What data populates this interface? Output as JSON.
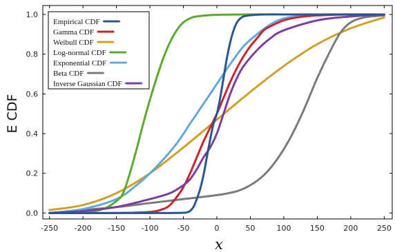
{
  "chart_data": {
    "type": "line",
    "title": "",
    "xlabel": "x",
    "ylabel": "E CDF",
    "xlim": [
      -260,
      262
    ],
    "ylim": [
      -0.03,
      1.045
    ],
    "xticks": [
      -250,
      -200,
      -150,
      -100,
      -50,
      0,
      50,
      100,
      150,
      200,
      250
    ],
    "yticks": [
      0.0,
      0.2,
      0.4,
      0.6,
      0.8,
      1.0
    ],
    "ytick_labels": [
      "0.0",
      "0.2",
      "0.4",
      "0.6",
      "0.8",
      "1.0"
    ],
    "grid": false,
    "legend_position": "top-left",
    "series": [
      {
        "name": "Empirical CDF",
        "color": "#2a5592",
        "points": [
          [
            -250,
            0
          ],
          [
            -200,
            0
          ],
          [
            -150,
            0
          ],
          [
            -100,
            0
          ],
          [
            -70,
            0
          ],
          [
            -50,
            0.001
          ],
          [
            -45,
            0.003
          ],
          [
            -40,
            0.01
          ],
          [
            -35,
            0.03
          ],
          [
            -30,
            0.07
          ],
          [
            -25,
            0.12
          ],
          [
            -20,
            0.19
          ],
          [
            -15,
            0.28
          ],
          [
            -10,
            0.37
          ],
          [
            -5,
            0.45
          ],
          [
            0,
            0.5
          ],
          [
            5,
            0.58
          ],
          [
            10,
            0.68
          ],
          [
            15,
            0.78
          ],
          [
            20,
            0.86
          ],
          [
            25,
            0.92
          ],
          [
            30,
            0.96
          ],
          [
            35,
            0.98
          ],
          [
            40,
            0.99
          ],
          [
            50,
            0.996
          ],
          [
            70,
            1.0
          ],
          [
            100,
            1.0
          ],
          [
            150,
            1.0
          ],
          [
            200,
            1.0
          ],
          [
            250,
            1.0
          ]
        ]
      },
      {
        "name": "Gamma CDF",
        "color": "#cc2229",
        "points": [
          [
            -250,
            0
          ],
          [
            -150,
            0
          ],
          [
            -100,
            0.005
          ],
          [
            -80,
            0.02
          ],
          [
            -70,
            0.04
          ],
          [
            -60,
            0.08
          ],
          [
            -50,
            0.13
          ],
          [
            -40,
            0.2
          ],
          [
            -30,
            0.28
          ],
          [
            -20,
            0.36
          ],
          [
            -10,
            0.43
          ],
          [
            0,
            0.5
          ],
          [
            10,
            0.58
          ],
          [
            20,
            0.66
          ],
          [
            30,
            0.73
          ],
          [
            40,
            0.79
          ],
          [
            50,
            0.84
          ],
          [
            60,
            0.88
          ],
          [
            70,
            0.92
          ],
          [
            80,
            0.94
          ],
          [
            100,
            0.97
          ],
          [
            120,
            0.985
          ],
          [
            150,
            0.995
          ],
          [
            200,
            1.0
          ],
          [
            250,
            1.0
          ]
        ]
      },
      {
        "name": "Weibull CDF",
        "color": "#d39e25",
        "points": [
          [
            -250,
            0.015
          ],
          [
            -200,
            0.04
          ],
          [
            -150,
            0.1
          ],
          [
            -100,
            0.2
          ],
          [
            -50,
            0.33
          ],
          [
            0,
            0.47
          ],
          [
            50,
            0.61
          ],
          [
            100,
            0.74
          ],
          [
            150,
            0.85
          ],
          [
            200,
            0.93
          ],
          [
            250,
            0.985
          ]
        ]
      },
      {
        "name": "Log-normal CDF",
        "color": "#5aaa2b",
        "points": [
          [
            -250,
            0
          ],
          [
            -200,
            0.002
          ],
          [
            -170,
            0.02
          ],
          [
            -150,
            0.06
          ],
          [
            -140,
            0.1
          ],
          [
            -130,
            0.2
          ],
          [
            -120,
            0.32
          ],
          [
            -110,
            0.45
          ],
          [
            -100,
            0.57
          ],
          [
            -90,
            0.68
          ],
          [
            -80,
            0.78
          ],
          [
            -70,
            0.86
          ],
          [
            -60,
            0.92
          ],
          [
            -50,
            0.96
          ],
          [
            -40,
            0.98
          ],
          [
            -30,
            0.99
          ],
          [
            0,
            0.998
          ],
          [
            50,
            1.0
          ],
          [
            100,
            1.0
          ],
          [
            250,
            1.0
          ]
        ]
      },
      {
        "name": "Exponential CDF",
        "color": "#62a8dc",
        "points": [
          [
            -250,
            0
          ],
          [
            -200,
            0.02
          ],
          [
            -150,
            0.07
          ],
          [
            -120,
            0.14
          ],
          [
            -100,
            0.2
          ],
          [
            -80,
            0.27
          ],
          [
            -60,
            0.35
          ],
          [
            -40,
            0.45
          ],
          [
            -20,
            0.55
          ],
          [
            0,
            0.65
          ],
          [
            20,
            0.75
          ],
          [
            40,
            0.84
          ],
          [
            60,
            0.9
          ],
          [
            80,
            0.95
          ],
          [
            100,
            0.98
          ],
          [
            130,
            0.995
          ],
          [
            160,
            1.0
          ],
          [
            250,
            1.0
          ]
        ]
      },
      {
        "name": "Beta CDF",
        "color": "#7a7a7a",
        "points": [
          [
            -250,
            0
          ],
          [
            -150,
            0.03
          ],
          [
            -100,
            0.05
          ],
          [
            -50,
            0.07
          ],
          [
            0,
            0.09
          ],
          [
            30,
            0.11
          ],
          [
            50,
            0.14
          ],
          [
            70,
            0.19
          ],
          [
            90,
            0.27
          ],
          [
            110,
            0.38
          ],
          [
            130,
            0.52
          ],
          [
            150,
            0.68
          ],
          [
            170,
            0.82
          ],
          [
            185,
            0.91
          ],
          [
            200,
            0.96
          ],
          [
            220,
            0.985
          ],
          [
            250,
            0.995
          ]
        ]
      },
      {
        "name": "Inverse Gaussian CDF",
        "color": "#7b3d9e",
        "points": [
          [
            -250,
            0
          ],
          [
            -200,
            0.01
          ],
          [
            -150,
            0.03
          ],
          [
            -100,
            0.07
          ],
          [
            -70,
            0.1
          ],
          [
            -50,
            0.14
          ],
          [
            -40,
            0.17
          ],
          [
            -30,
            0.22
          ],
          [
            -20,
            0.28
          ],
          [
            -10,
            0.33
          ],
          [
            0,
            0.4
          ],
          [
            10,
            0.5
          ],
          [
            20,
            0.6
          ],
          [
            30,
            0.68
          ],
          [
            40,
            0.74
          ],
          [
            60,
            0.82
          ],
          [
            80,
            0.88
          ],
          [
            100,
            0.92
          ],
          [
            150,
            0.97
          ],
          [
            200,
            0.99
          ],
          [
            250,
            1.0
          ]
        ]
      }
    ]
  }
}
